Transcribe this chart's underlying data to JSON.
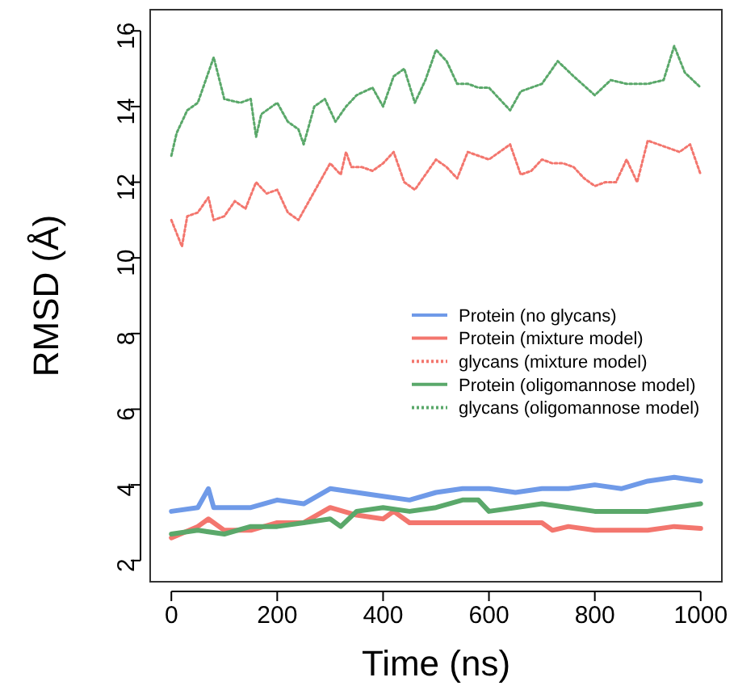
{
  "chart_data": {
    "type": "line",
    "xlabel": "Time (ns)",
    "ylabel": "RMSD (Å)",
    "xlim": [
      -40,
      1040
    ],
    "ylim": [
      1.44,
      16.56
    ],
    "xticks": [
      0,
      200,
      400,
      600,
      800,
      1000
    ],
    "yticks": [
      2,
      4,
      6,
      8,
      10,
      12,
      14,
      16
    ],
    "grid": false,
    "legend": "right",
    "marker": "none",
    "series": [
      {
        "name": "Protein (no glycans)",
        "color": "#6f9ae8",
        "line_style": "solid",
        "x": [
          0,
          50,
          70,
          80,
          100,
          150,
          200,
          250,
          300,
          350,
          400,
          450,
          500,
          550,
          600,
          650,
          700,
          750,
          800,
          850,
          900,
          950,
          1000
        ],
        "values": [
          3.3,
          3.4,
          3.9,
          3.4,
          3.4,
          3.4,
          3.6,
          3.5,
          3.9,
          3.8,
          3.7,
          3.6,
          3.8,
          3.9,
          3.9,
          3.8,
          3.9,
          3.9,
          4.0,
          3.9,
          4.1,
          4.2,
          4.1
        ]
      },
      {
        "name": "Protein (mixture model)",
        "color": "#f3766e",
        "line_style": "solid",
        "x": [
          0,
          50,
          70,
          100,
          150,
          200,
          250,
          300,
          350,
          400,
          420,
          450,
          500,
          550,
          600,
          650,
          700,
          720,
          750,
          800,
          850,
          900,
          950,
          1000
        ],
        "values": [
          2.6,
          2.9,
          3.1,
          2.8,
          2.8,
          3.0,
          3.0,
          3.4,
          3.2,
          3.1,
          3.3,
          3.0,
          3.0,
          3.0,
          3.0,
          3.0,
          3.0,
          2.8,
          2.9,
          2.8,
          2.8,
          2.8,
          2.9,
          2.85
        ]
      },
      {
        "name": "glycans (mixture model)",
        "color": "#f3766e",
        "line_style": "dotted",
        "x": [
          0,
          20,
          30,
          50,
          70,
          80,
          100,
          120,
          140,
          160,
          180,
          200,
          220,
          240,
          260,
          280,
          300,
          320,
          330,
          340,
          360,
          380,
          400,
          420,
          440,
          460,
          480,
          500,
          520,
          540,
          560,
          580,
          600,
          620,
          640,
          660,
          680,
          700,
          720,
          740,
          760,
          780,
          800,
          820,
          840,
          860,
          880,
          900,
          920,
          940,
          960,
          980,
          1000
        ],
        "values": [
          11.0,
          10.3,
          11.1,
          11.2,
          11.6,
          11.0,
          11.1,
          11.5,
          11.3,
          12.0,
          11.7,
          11.8,
          11.2,
          11.0,
          11.5,
          12.0,
          12.5,
          12.2,
          12.8,
          12.4,
          12.4,
          12.3,
          12.5,
          12.8,
          12.0,
          11.8,
          12.2,
          12.6,
          12.4,
          12.1,
          12.8,
          12.7,
          12.6,
          12.8,
          13.0,
          12.2,
          12.3,
          12.6,
          12.5,
          12.5,
          12.4,
          12.1,
          11.9,
          12.0,
          12.0,
          12.6,
          12.0,
          13.1,
          13.0,
          12.9,
          12.8,
          13.0,
          12.2
        ]
      },
      {
        "name": "Protein (oligomannose model)",
        "color": "#5aa86a",
        "line_style": "solid",
        "x": [
          0,
          50,
          100,
          150,
          200,
          250,
          300,
          320,
          350,
          400,
          450,
          500,
          550,
          580,
          600,
          650,
          700,
          750,
          800,
          850,
          900,
          950,
          1000
        ],
        "values": [
          2.7,
          2.8,
          2.7,
          2.9,
          2.9,
          3.0,
          3.1,
          2.9,
          3.3,
          3.4,
          3.3,
          3.4,
          3.6,
          3.6,
          3.3,
          3.4,
          3.5,
          3.4,
          3.3,
          3.3,
          3.3,
          3.4,
          3.5
        ]
      },
      {
        "name": "glycans (oligomannose model)",
        "color": "#5aa86a",
        "line_style": "dotted",
        "x": [
          0,
          10,
          30,
          50,
          70,
          80,
          100,
          130,
          150,
          160,
          170,
          200,
          220,
          240,
          250,
          270,
          290,
          310,
          330,
          350,
          380,
          400,
          420,
          440,
          460,
          480,
          500,
          520,
          540,
          560,
          580,
          600,
          640,
          660,
          700,
          730,
          760,
          800,
          830,
          860,
          900,
          930,
          950,
          970,
          1000
        ],
        "values": [
          12.7,
          13.3,
          13.9,
          14.1,
          14.9,
          15.3,
          14.2,
          14.1,
          14.2,
          13.2,
          13.8,
          14.1,
          13.6,
          13.4,
          13.0,
          14.0,
          14.2,
          13.6,
          14.0,
          14.3,
          14.5,
          14.0,
          14.8,
          15.0,
          14.1,
          14.7,
          15.5,
          15.2,
          14.6,
          14.6,
          14.5,
          14.5,
          13.9,
          14.4,
          14.6,
          15.2,
          14.8,
          14.3,
          14.7,
          14.6,
          14.6,
          14.7,
          15.6,
          14.9,
          14.5
        ]
      }
    ]
  }
}
